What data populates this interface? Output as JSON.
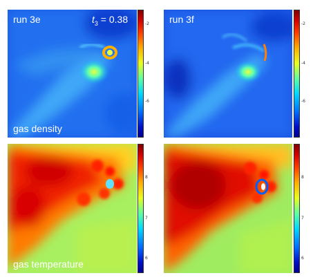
{
  "panels": {
    "top_left_label": "run 3e",
    "top_left_time_var": "t",
    "top_left_time_sub": "3",
    "top_left_time_val": " = 0.38",
    "top_right_label": "run 3f",
    "row1_label": "gas density",
    "row2_label": "gas temperature"
  },
  "colorbars": {
    "density_ticks": [
      "-2",
      "-4",
      "-6"
    ],
    "temperature_ticks": [
      "8",
      "7",
      "6"
    ]
  },
  "colors": {
    "low": "#00008f",
    "mid_low": "#0070ff",
    "mid": "#60ffa0",
    "mid_high": "#ffb000",
    "high": "#7f0000"
  }
}
